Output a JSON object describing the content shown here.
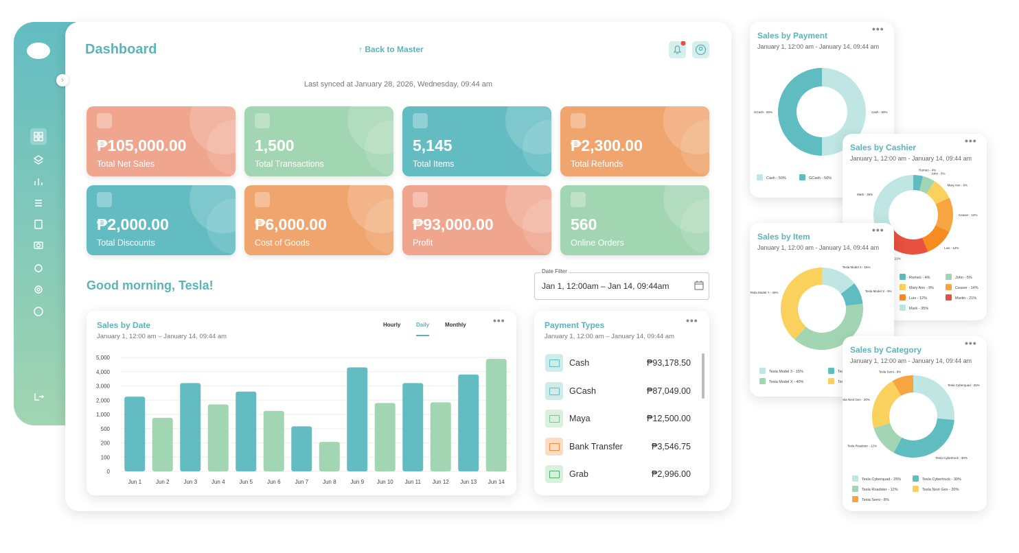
{
  "header": {
    "title": "Dashboard",
    "back_link": "Back to Master",
    "sync_text": "Last synced at January 28, 2026,  Wednesday, 09:44 am"
  },
  "cards": [
    {
      "value": "₱105,000.00",
      "label": "Total Net Sales",
      "color": "#f0a58e"
    },
    {
      "value": "1,500",
      "label": "Total Transactions",
      "color": "#a2d5b1"
    },
    {
      "value": "5,145",
      "label": "Total Items",
      "color": "#62bcc2"
    },
    {
      "value": "₱2,300.00",
      "label": "Total Refunds",
      "color": "#f0a46e"
    },
    {
      "value": "₱2,000.00",
      "label": "Total Discounts",
      "color": "#62bcc2"
    },
    {
      "value": "₱6,000.00",
      "label": "Cost of Goods",
      "color": "#f0a46e"
    },
    {
      "value": "₱93,000.00",
      "label": "Profit",
      "color": "#f0a58e"
    },
    {
      "value": "560",
      "label": "Online Orders",
      "color": "#a2d5b1"
    }
  ],
  "greeting": "Good morning, Tesla!",
  "date_filter": {
    "label": "Date Filter",
    "value": "Jan 1, 12:00am – Jan 14, 09:44am"
  },
  "payment_types": {
    "title": "Payment Types",
    "subtitle": "January 1, 12:00 am – January 14, 09:44 am",
    "rows": [
      {
        "name": "Cash",
        "amount": "₱93,178.50"
      },
      {
        "name": "GCash",
        "amount": "₱87,049.00"
      },
      {
        "name": "Maya",
        "amount": "₱12,500.00"
      },
      {
        "name": "Bank Transfer",
        "amount": "₱3,546.75"
      },
      {
        "name": "Grab",
        "amount": "₱2,996.00"
      }
    ]
  },
  "chart_data": [
    {
      "type": "bar",
      "title": "Sales by Date",
      "subtitle": "January 1, 12:00 am – January 14, 09:44 am",
      "tabs": [
        "Hourly",
        "Daily",
        "Monthly"
      ],
      "categories": [
        "Jun 1",
        "Jun 2",
        "Jun 3",
        "Jun 4",
        "Jun 5",
        "Jun 6",
        "Jun 7",
        "Jun 8",
        "Jun 9",
        "Jun 10",
        "Jun 11",
        "Jun 12",
        "Jun 13",
        "Jun 14"
      ],
      "values": [
        2250,
        880,
        3200,
        1700,
        2600,
        1250,
        580,
        220,
        4300,
        1800,
        3200,
        1850,
        3800,
        4900
      ],
      "colors": [
        "#62bcc2",
        "#a2d5b1"
      ],
      "ylim": [
        0,
        5000
      ],
      "yticks": [
        0,
        100,
        200,
        500,
        {
          "value": 1000,
          "label": "1,000"
        },
        {
          "value": 2000,
          "label": "2,000"
        },
        {
          "value": 3000,
          "label": "3,000"
        },
        {
          "value": 4000,
          "label": "4,000"
        },
        {
          "value": 5000,
          "label": "5,000"
        }
      ],
      "grid": true
    },
    {
      "type": "donut",
      "title": "Sales by Payment",
      "subtitle": "January 1, 12:00 am - January 14, 09:44 am",
      "values": [
        50,
        50
      ],
      "value_labels": [
        "Cash - 50%",
        "GCash - 50%"
      ],
      "colors": [
        "#bfe6e2",
        "#5fbcc0"
      ]
    },
    {
      "type": "donut",
      "title": "Sales by Cashier",
      "subtitle": "January 1, 12:00 am - January 14, 09:44 am",
      "values": [
        4,
        5,
        9,
        14,
        12,
        21,
        35
      ],
      "value_labels": [
        "Romeo - 4%",
        "John - 5%",
        "Mary Ann - 9%",
        "Ceaser - 14%",
        "Luis - 12%",
        "Martin - 21%",
        "Mark - 35%"
      ],
      "colors": [
        "#5fbcc0",
        "#a2d5b1",
        "#f9d15c",
        "#f7a541",
        "#f68b1f",
        "#e8503f",
        "#bfe6e2"
      ]
    },
    {
      "type": "donut",
      "title": "Sales by Item",
      "subtitle": "January 1, 12:00 am - January 14, 09:44 am",
      "values": [
        15,
        9,
        40,
        40
      ],
      "value_labels": [
        "Tesla Model 3 - 15%",
        "Tesla Model S - 9%",
        "Tesla Model X - 40%",
        "Tesla Model Y - 40%"
      ],
      "colors": [
        "#bfe6e2",
        "#5fbcc0",
        "#a2d5b1",
        "#f9d15c"
      ]
    },
    {
      "type": "donut",
      "title": "Sales by Category",
      "subtitle": "January 1, 12:00 am - January 14, 09:44 am",
      "values": [
        25,
        30,
        12,
        20,
        8
      ],
      "value_labels": [
        "Tesla Cyberquad - 25%",
        "Tesla Cybertruck - 30%",
        "Tesla Roadster - 12%",
        "Tesla Next Gen - 20%",
        "Tesla Semi - 8%"
      ],
      "colors": [
        "#bfe6e2",
        "#5fbcc0",
        "#a2d5b1",
        "#f9d15c",
        "#f7a541"
      ]
    }
  ]
}
